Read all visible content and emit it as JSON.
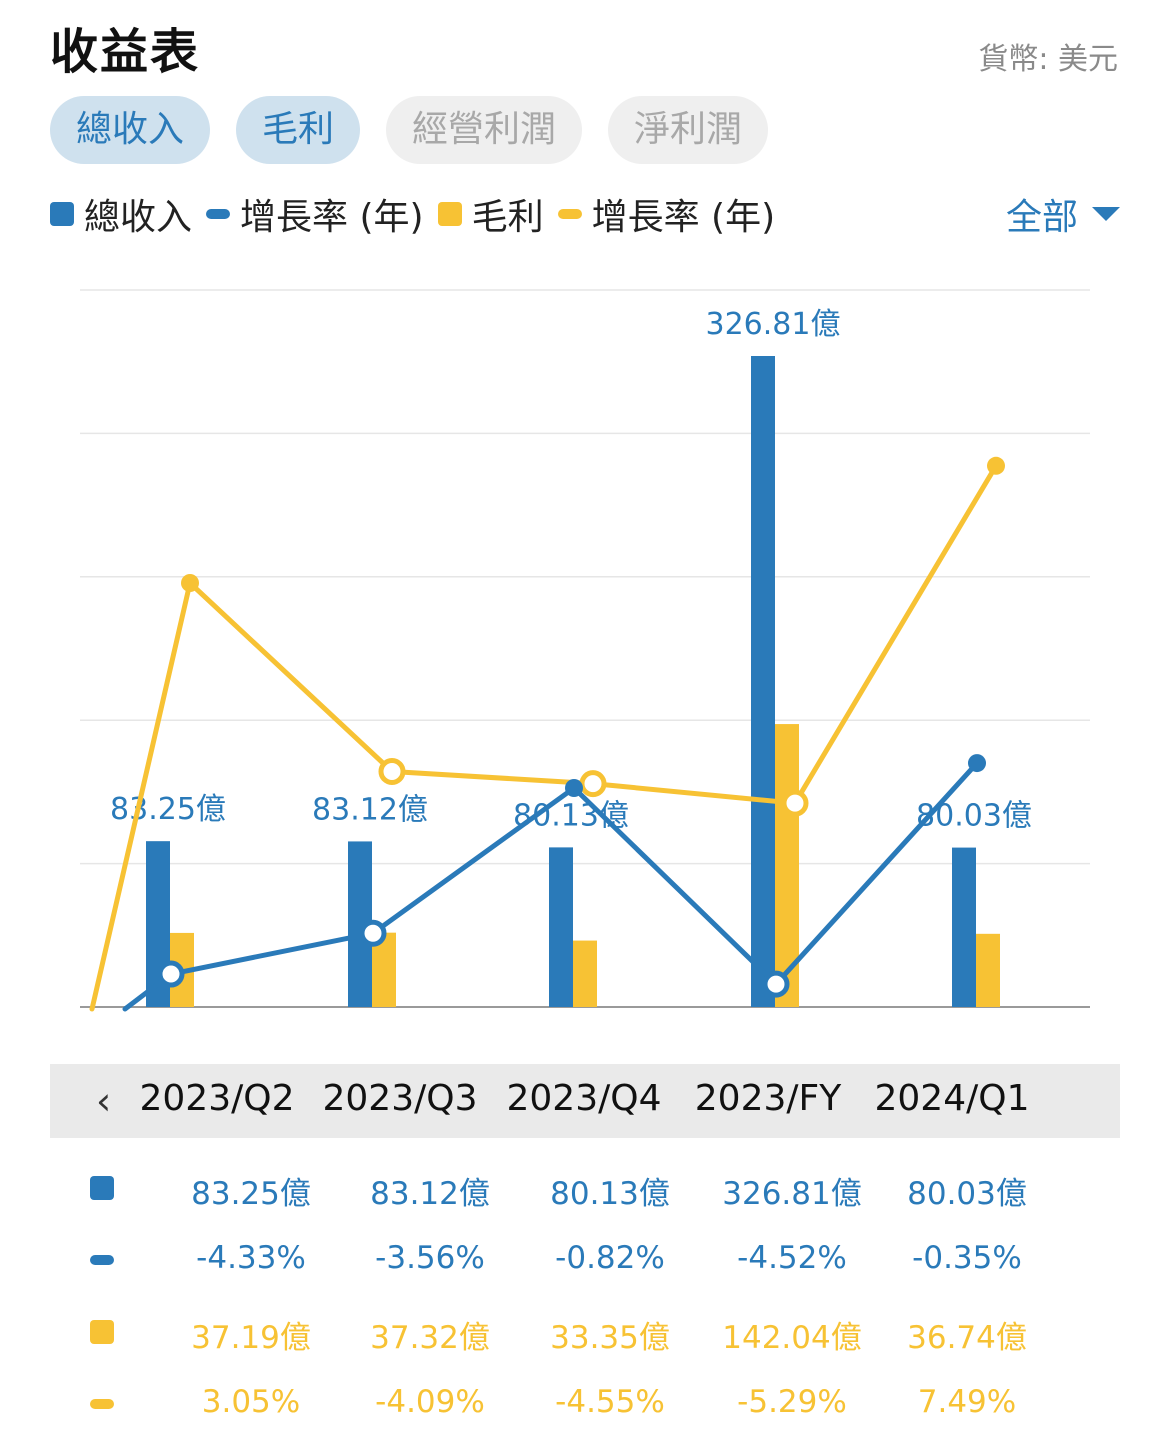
{
  "header": {
    "title": "收益表",
    "currency": "貨幣: 美元"
  },
  "tabs": [
    {
      "label": "總收入",
      "active": true
    },
    {
      "label": "毛利",
      "active": true
    },
    {
      "label": "經營利潤",
      "active": false
    },
    {
      "label": "淨利潤",
      "active": false
    }
  ],
  "legend": [
    {
      "label": "總收入",
      "shape": "square",
      "color": "#2a7ab9"
    },
    {
      "label": "增長率 (年)",
      "shape": "line",
      "color": "#2a7ab9"
    },
    {
      "label": "毛利",
      "shape": "square",
      "color": "#f7c234"
    },
    {
      "label": "增長率 (年)",
      "shape": "line",
      "color": "#f7c234"
    }
  ],
  "filter": {
    "label": "全部"
  },
  "colors": {
    "blue": "#2a7ab9",
    "yellow": "#f7c234",
    "grid": "#e6e6e6"
  },
  "chart_data": {
    "type": "bar",
    "categories": [
      "2023/Q2",
      "2023/Q3",
      "2023/Q4",
      "2023/FY",
      "2024/Q1"
    ],
    "series": [
      {
        "name": "總收入",
        "type": "bar",
        "color": "#2a7ab9",
        "values": [
          83.25,
          83.12,
          80.13,
          326.81,
          80.03
        ],
        "labels": [
          "83.25億",
          "83.12億",
          "80.13億",
          "326.81億",
          "80.03億"
        ],
        "unit": "億"
      },
      {
        "name": "增長率 (年)",
        "type": "line",
        "color": "#2a7ab9",
        "values": [
          -4.33,
          -3.56,
          -0.82,
          -4.52,
          -0.35
        ],
        "labels": [
          "-4.33%",
          "-3.56%",
          "-0.82%",
          "-4.52%",
          "-0.35%"
        ],
        "unit": "%"
      },
      {
        "name": "毛利",
        "type": "bar",
        "color": "#f7c234",
        "values": [
          37.19,
          37.32,
          33.35,
          142.04,
          36.74
        ],
        "labels": [
          "37.19億",
          "37.32億",
          "33.35億",
          "142.04億",
          "36.74億"
        ],
        "unit": "億"
      },
      {
        "name": "增長率 (年)",
        "type": "line",
        "color": "#f7c234",
        "values": [
          3.05,
          -4.09,
          -4.55,
          -5.29,
          7.49
        ],
        "labels": [
          "3.05%",
          "-4.09%",
          "-4.55%",
          "-5.29%",
          "7.49%"
        ],
        "unit": "%"
      }
    ],
    "grid": true,
    "legend_position": "top-left"
  }
}
